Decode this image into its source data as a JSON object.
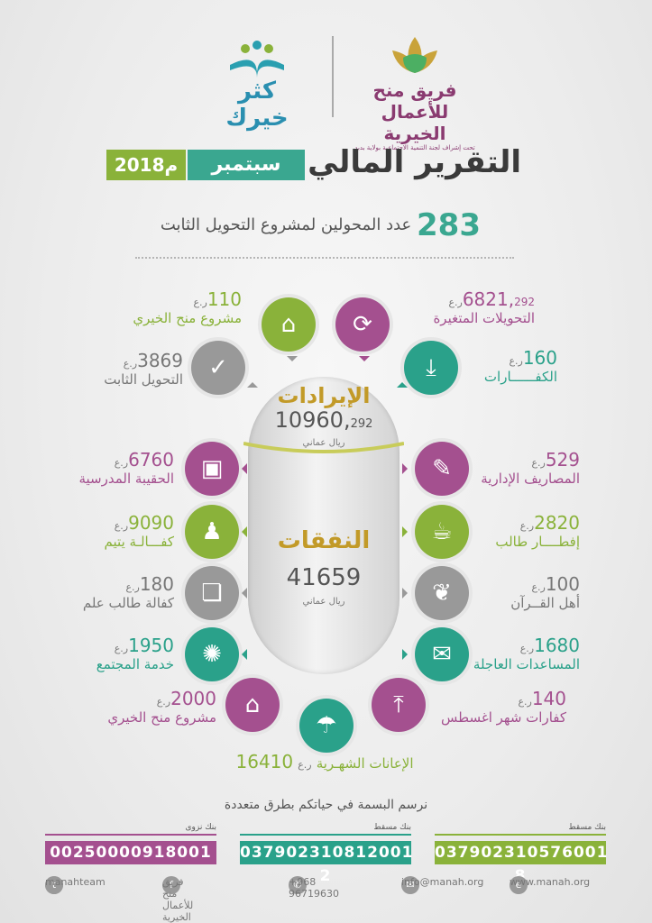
{
  "logos": {
    "left_text": "كثر خيرك",
    "right_text": "فريق منح للأعمال الخيرية",
    "right_subtext": "تحت إشراف لجنة التنمية الاجتماعية بولاية بدبد"
  },
  "header": {
    "title": "التقرير المالي",
    "month": "سبتمبر",
    "year": "2018م"
  },
  "headline": {
    "number": "283",
    "text": "عدد المحولين لمشروع التحويل الثابت"
  },
  "revenues": {
    "title": "الإيرادات",
    "value_main": "10960,",
    "value_fraction": "292",
    "currency": "ريال عماني"
  },
  "expenses": {
    "title": "النفقات",
    "value": "41659",
    "currency": "ريال عماني"
  },
  "unit": "ر.ع",
  "items": {
    "variable_transfers": {
      "value": "6821,",
      "fraction": "292",
      "label": "التحويلات المتغيرة",
      "icon": "refresh-chart-icon"
    },
    "manah_project_top": {
      "value": "110",
      "label": "مشروع منح الخيري",
      "icon": "house-icon"
    },
    "fixed_transfer": {
      "value": "3869",
      "label": "التحويل الثابت",
      "icon": "check-circle-icon"
    },
    "kaffarat": {
      "value": "160",
      "label": "الكفــــــارات",
      "icon": "download-icon"
    },
    "school_bag": {
      "value": "6760",
      "label": "الحقيبة المدرسية",
      "icon": "bag-icon"
    },
    "admin_expenses": {
      "value": "529",
      "label": "المصاريف الإدارية",
      "icon": "document-icon"
    },
    "orphan_sponsorship": {
      "value": "9090",
      "label": "كفـــالـة يتيم",
      "icon": "person-icon"
    },
    "student_iftar": {
      "value": "2820",
      "label": "إفطــــار طالب",
      "icon": "meal-icon"
    },
    "knowledge_student": {
      "value": "180",
      "label": "كفالة طالب علم",
      "icon": "book-search-icon"
    },
    "quran_people": {
      "value": "100",
      "label": "أهل القــرآن",
      "icon": "quran-icon"
    },
    "community_service": {
      "value": "1950",
      "label": "خدمة المجتمع",
      "icon": "network-icon"
    },
    "urgent_aid": {
      "value": "1680",
      "label": "المساعدات العاجلة",
      "icon": "mail-icon"
    },
    "manah_project_bottom": {
      "value": "2000",
      "label": "مشروع منح الخيري",
      "icon": "house-icon"
    },
    "august_kaffarat": {
      "value": "140",
      "label": "كفارات شهر اغسطس",
      "icon": "upload-icon"
    },
    "monthly_aid": {
      "value": "16410",
      "label": "الإعانات الشهـرية",
      "icon": "umbrella-icon"
    }
  },
  "footer": {
    "tagline": "نرسم البسمة في حياتكم بطرق متعددة",
    "banks": [
      {
        "name": "بنك نزوى",
        "account": "00250000918001",
        "color": "#a4508f"
      },
      {
        "name": "بنك مسقط",
        "account": "037902310812001 2",
        "color": "#2aa18a"
      },
      {
        "name": "بنك مسقط",
        "account": "037902310576001 8",
        "color": "#8ab23a"
      }
    ],
    "social_handle": "manahteam",
    "facebook": "فريق منح للأعمال الخيرية",
    "phone": "+968 96719630",
    "email": "info@manah.org",
    "website": "www.manah.org"
  }
}
